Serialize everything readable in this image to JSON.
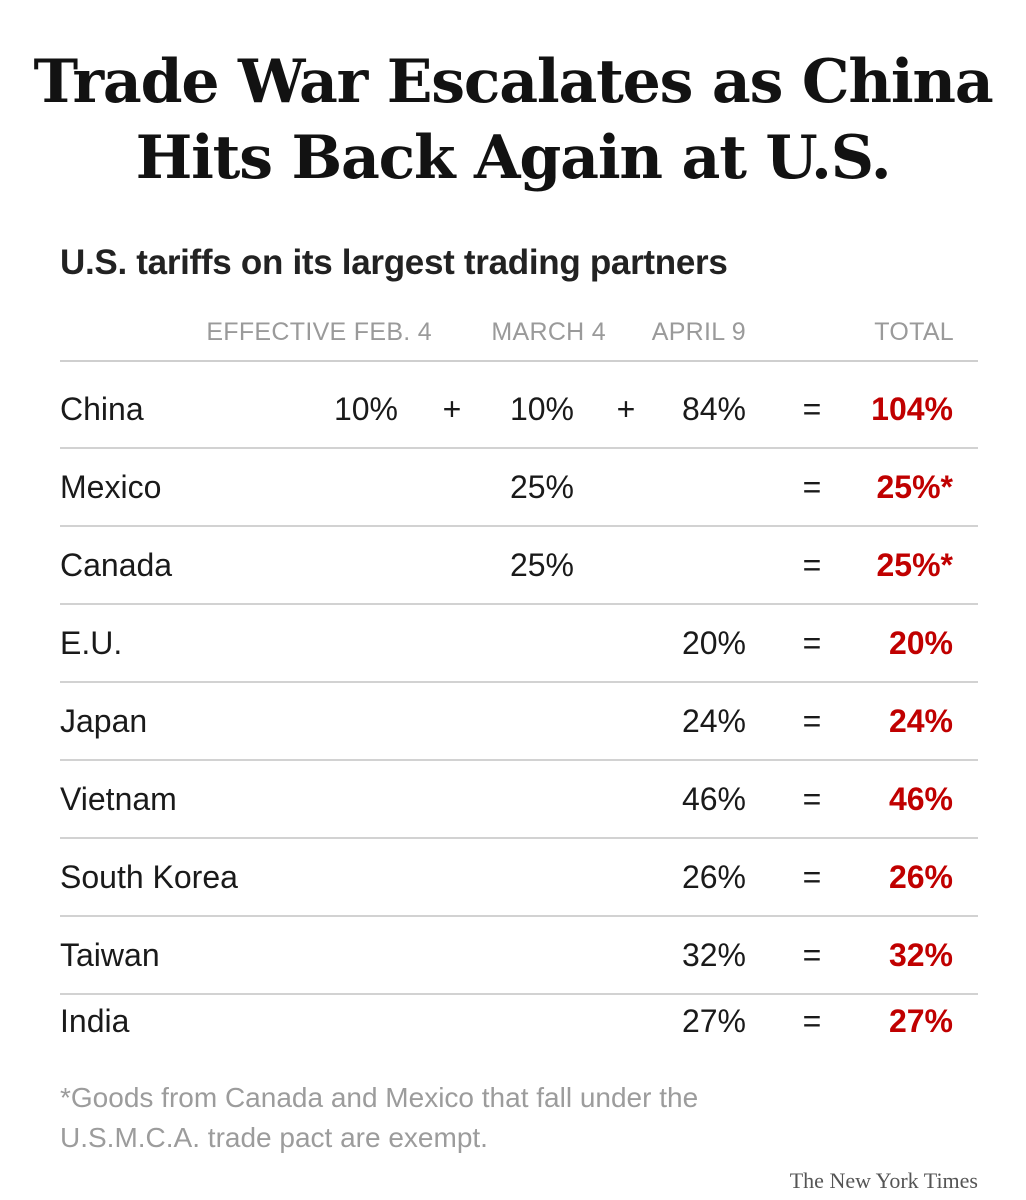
{
  "headline": {
    "line1": "Trade War Escalates as China",
    "line2": "Hits Back Again at U.S."
  },
  "chart_data": {
    "type": "table",
    "title": "U.S. tariffs on its largest trading partners",
    "columns": [
      "EFFECTIVE FEB. 4",
      "MARCH 4",
      "APRIL 9",
      "TOTAL"
    ],
    "rows": [
      {
        "country": "China",
        "feb4": "10%",
        "op1": "+",
        "mar4": "10%",
        "op2": "+",
        "apr9": "84%",
        "eq": "=",
        "total": "104%"
      },
      {
        "country": "Mexico",
        "feb4": "",
        "op1": "",
        "mar4": "25%",
        "op2": "",
        "apr9": "",
        "eq": "=",
        "total": "25%*"
      },
      {
        "country": "Canada",
        "feb4": "",
        "op1": "",
        "mar4": "25%",
        "op2": "",
        "apr9": "",
        "eq": "=",
        "total": "25%*"
      },
      {
        "country": "E.U.",
        "feb4": "",
        "op1": "",
        "mar4": "",
        "op2": "",
        "apr9": "20%",
        "eq": "=",
        "total": "20%"
      },
      {
        "country": "Japan",
        "feb4": "",
        "op1": "",
        "mar4": "",
        "op2": "",
        "apr9": "24%",
        "eq": "=",
        "total": "24%"
      },
      {
        "country": "Vietnam",
        "feb4": "",
        "op1": "",
        "mar4": "",
        "op2": "",
        "apr9": "46%",
        "eq": "=",
        "total": "46%"
      },
      {
        "country": "South Korea",
        "feb4": "",
        "op1": "",
        "mar4": "",
        "op2": "",
        "apr9": "26%",
        "eq": "=",
        "total": "26%"
      },
      {
        "country": "Taiwan",
        "feb4": "",
        "op1": "",
        "mar4": "",
        "op2": "",
        "apr9": "32%",
        "eq": "=",
        "total": "32%"
      },
      {
        "country": "India",
        "feb4": "",
        "op1": "",
        "mar4": "",
        "op2": "",
        "apr9": "27%",
        "eq": "=",
        "total": "27%"
      }
    ],
    "footnote_line1": "*Goods from Canada and Mexico that fall under the",
    "footnote_line2": "U.S.M.C.A. trade pact are exempt.",
    "total_color": "#c00000"
  },
  "credit": "The New York Times"
}
